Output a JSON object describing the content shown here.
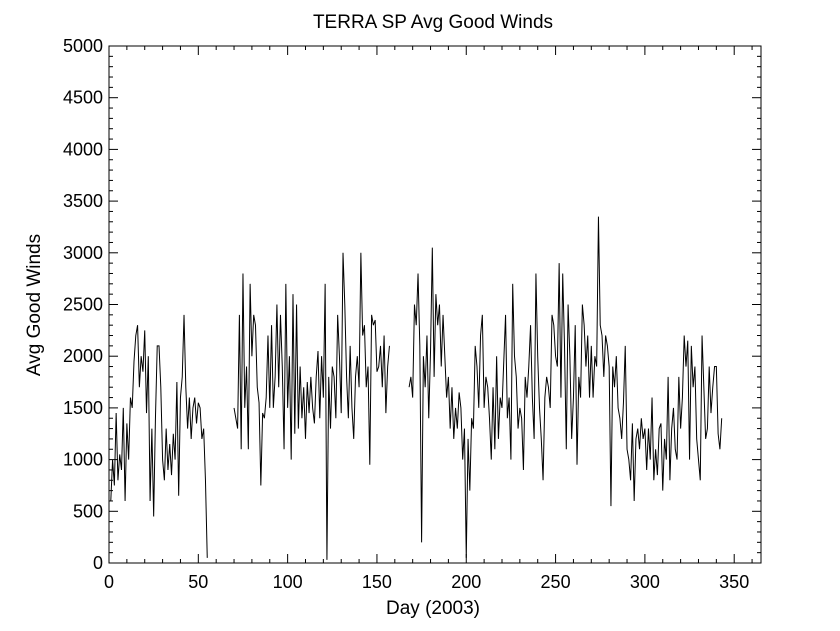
{
  "chart_data": {
    "type": "line",
    "title": "TERRA SP Avg Good Winds",
    "xlabel": "Day (2003)",
    "ylabel": "Avg Good Winds",
    "xlim": [
      0,
      365
    ],
    "ylim": [
      0,
      5000
    ],
    "x_ticks": [
      0,
      50,
      100,
      150,
      200,
      250,
      300,
      350
    ],
    "y_ticks": [
      0,
      500,
      1000,
      1500,
      2000,
      2500,
      3000,
      3500,
      4000,
      4500,
      5000
    ],
    "grid": false,
    "line_color": "#000000",
    "series": [
      {
        "segments": [
          {
            "x_start": 1,
            "values": [
              600,
              1000,
              750,
              1450,
              800,
              1050,
              900,
              1500,
              600,
              1350,
              1000,
              1600,
              1500,
              1950,
              2200,
              2300,
              1700,
              2000,
              1850,
              2250,
              1450,
              2000,
              600,
              1300,
              450,
              1400,
              2100,
              2100,
              1700,
              1000,
              800,
              1300,
              900,
              1150,
              850,
              1250,
              1000,
              1750,
              650,
              1600,
              1800,
              2400,
              1700,
              1300,
              1600,
              1200,
              1500,
              1600,
              1350,
              1550,
              1500,
              1200,
              1300,
              800,
              50
            ]
          },
          {
            "x_start": 70,
            "values": [
              1500,
              1400,
              1300,
              2400,
              1100,
              2800,
              1500,
              1900,
              1100,
              2700,
              2000,
              2400,
              2300,
              1700,
              1550,
              750,
              1450,
              1400,
              1600,
              2200,
              1500,
              2300,
              1500,
              1800,
              2500,
              1700,
              2400,
              1900,
              1100,
              2700,
              1500,
              2000,
              1000,
              2600,
              1250,
              2500,
              1300,
              1900,
              1400,
              1700,
              1200,
              1750,
              1450,
              1800,
              1500,
              1350,
              1800,
              2050,
              1400,
              2000,
              1600,
              2700,
              30,
              1800,
              1300,
              1900,
              1800,
              1400,
              2400,
              2000,
              1450,
              3000,
              2500,
              1800,
              1400,
              2100,
              1500,
              1200,
              1800,
              2000,
              1700,
              3000,
              2200,
              2300,
              1700,
              1900,
              950,
              2400,
              2300,
              2350,
              1850,
              1900,
              2100,
              1700,
              2200,
              1450,
              1900,
              2100
            ]
          },
          {
            "x_start": 168,
            "values": [
              1700,
              1800,
              1600,
              2500,
              2300,
              2800,
              2100,
              200,
              2000,
              1700,
              2200,
              1400,
              2050,
              3050,
              1800,
              2600,
              2300,
              2500,
              1900,
              2400,
              2000,
              1600,
              1800,
              1300,
              1700,
              1200,
              1500,
              1300,
              1650,
              1500,
              1000,
              1300,
              50,
              1200,
              700,
              1400,
              1300,
              2100,
              1900,
              1500,
              2200,
              2400,
              1500,
              1800,
              1700,
              1400,
              1000,
              1700,
              1100,
              2000,
              1200,
              1600,
              1500,
              1950,
              2400,
              1400,
              1600,
              1000,
              2700,
              2000,
              1800,
              1300,
              1500,
              1400,
              900,
              1800,
              1600,
              1900,
              2300,
              1600,
              1200,
              2800,
              2000,
              1500,
              1200,
              800,
              1600,
              1800,
              1700,
              1500,
              2400,
              2300,
              2000,
              1900,
              2900,
              1600,
              2800,
              2100,
              1100,
              2500,
              2000,
              1200,
              1600,
              2300,
              950,
              1800,
              1600,
              2500,
              2300,
              1900,
              2200,
              1600,
              2100,
              1600,
              2000,
              1900,
              3350,
              2300,
              2200,
              1800,
              2200,
              2100,
              1900,
              550,
              1900,
              1700,
              2000,
              1500,
              1400,
              1200,
              1550,
              2100,
              1100,
              1000,
              800,
              1350,
              600,
              1200,
              1300,
              1100,
              1400,
              1200,
              1300,
              900,
              1300,
              1000,
              1600,
              800,
              1100,
              850,
              1300,
              1350,
              700,
              1200,
              1000,
              1800,
              800,
              1300,
              1500,
              1100,
              1000,
              1800,
              1300,
              1600,
              2200,
              1900,
              2150,
              1000,
              2100,
              1700,
              1900,
              1200,
              1000,
              800,
              2200,
              1700,
              1200,
              1300,
              1900,
              1450,
              1700,
              1900,
              1900,
              1250,
              1100,
              1400
            ]
          }
        ]
      }
    ]
  }
}
